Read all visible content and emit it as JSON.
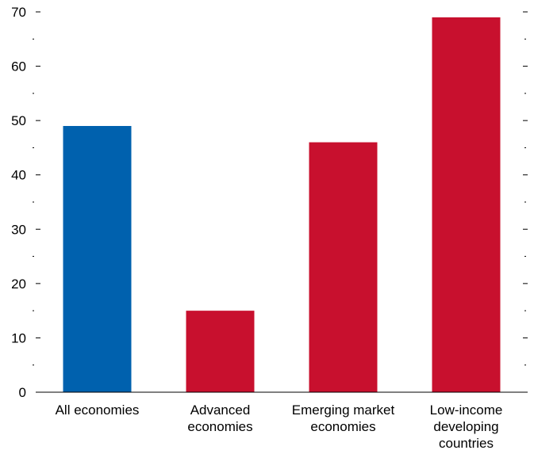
{
  "chart_data": {
    "type": "bar",
    "title": "",
    "xlabel": "",
    "ylabel": "",
    "ylim": [
      0,
      70
    ],
    "yticks": [
      0,
      10,
      20,
      30,
      40,
      50,
      60,
      70
    ],
    "minor_step": 5,
    "right_axis_ticks": true,
    "grid": false,
    "legend": "none",
    "categories": [
      [
        "All economies"
      ],
      [
        "Advanced",
        "economies"
      ],
      [
        "Emerging market",
        "economies"
      ],
      [
        "Low-income",
        "developing",
        "countries"
      ]
    ],
    "values": [
      49,
      15,
      46,
      69
    ],
    "colors": [
      "#0061ae",
      "#c8102e",
      "#c8102e",
      "#c8102e"
    ]
  }
}
